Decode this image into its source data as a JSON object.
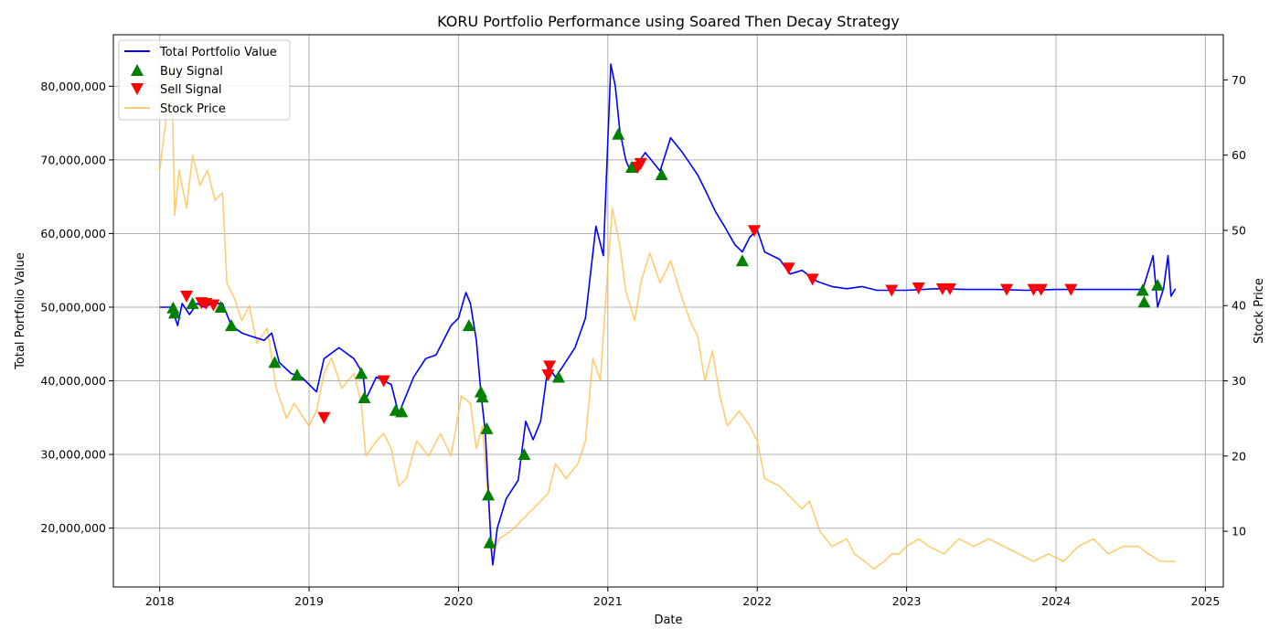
{
  "chart_data": {
    "type": "line",
    "title": "KORU Portfolio Performance using Soared Then Decay Strategy",
    "xlabel": "Date",
    "ylabel_left": "Total Portfolio Value",
    "ylabel_right": "Stock Price",
    "x_ticks": [
      "2018",
      "2019",
      "2020",
      "2021",
      "2022",
      "2023",
      "2024",
      "2025"
    ],
    "x_range": [
      2017.69,
      2025.12
    ],
    "left_ticks": [
      "20,000,000",
      "30,000,000",
      "40,000,000",
      "50,000,000",
      "60,000,000",
      "70,000,000",
      "80,000,000"
    ],
    "left_range": [
      12000000,
      87000000
    ],
    "right_ticks": [
      "10",
      "20",
      "30",
      "40",
      "50",
      "60",
      "70"
    ],
    "right_range": [
      2.6,
      76
    ],
    "grid": true,
    "legend_placement": "top-left",
    "legend": [
      "Total Portfolio Value",
      "Buy Signal",
      "Sell Signal",
      "Stock Price"
    ],
    "colors": {
      "portfolio": "#0000ff",
      "buy": "#008000",
      "sell": "#ff0000",
      "stock": "#ffc04c",
      "grid": "#b0b0b0"
    },
    "series": [
      {
        "name": "Total Portfolio Value",
        "axis": "left",
        "points": [
          [
            2018.0,
            50000000
          ],
          [
            2018.08,
            50000000
          ],
          [
            2018.12,
            47500000
          ],
          [
            2018.15,
            50500000
          ],
          [
            2018.2,
            49000000
          ],
          [
            2018.25,
            50500000
          ],
          [
            2018.3,
            50000000
          ],
          [
            2018.35,
            50500000
          ],
          [
            2018.42,
            50500000
          ],
          [
            2018.48,
            47500000
          ],
          [
            2018.55,
            46500000
          ],
          [
            2018.62,
            46000000
          ],
          [
            2018.7,
            45500000
          ],
          [
            2018.75,
            46500000
          ],
          [
            2018.8,
            42500000
          ],
          [
            2018.88,
            41000000
          ],
          [
            2018.95,
            40500000
          ],
          [
            2019.0,
            39500000
          ],
          [
            2019.05,
            38500000
          ],
          [
            2019.1,
            43000000
          ],
          [
            2019.2,
            44500000
          ],
          [
            2019.3,
            43000000
          ],
          [
            2019.36,
            41000000
          ],
          [
            2019.38,
            37500000
          ],
          [
            2019.45,
            40500000
          ],
          [
            2019.55,
            39500000
          ],
          [
            2019.6,
            35500000
          ],
          [
            2019.62,
            36500000
          ],
          [
            2019.7,
            40500000
          ],
          [
            2019.78,
            43000000
          ],
          [
            2019.85,
            43500000
          ],
          [
            2019.95,
            47500000
          ],
          [
            2020.0,
            48500000
          ],
          [
            2020.05,
            52000000
          ],
          [
            2020.08,
            50500000
          ],
          [
            2020.12,
            45500000
          ],
          [
            2020.15,
            38500000
          ],
          [
            2020.18,
            33000000
          ],
          [
            2020.2,
            25000000
          ],
          [
            2020.22,
            17000000
          ],
          [
            2020.23,
            15000000
          ],
          [
            2020.26,
            20000000
          ],
          [
            2020.32,
            24000000
          ],
          [
            2020.4,
            26500000
          ],
          [
            2020.45,
            34500000
          ],
          [
            2020.5,
            32000000
          ],
          [
            2020.55,
            34500000
          ],
          [
            2020.6,
            42000000
          ],
          [
            2020.65,
            40500000
          ],
          [
            2020.7,
            42000000
          ],
          [
            2020.78,
            44500000
          ],
          [
            2020.85,
            48500000
          ],
          [
            2020.92,
            61000000
          ],
          [
            2020.97,
            57000000
          ],
          [
            2021.02,
            83000000
          ],
          [
            2021.05,
            80000000
          ],
          [
            2021.08,
            74000000
          ],
          [
            2021.12,
            70000000
          ],
          [
            2021.15,
            68500000
          ],
          [
            2021.2,
            69500000
          ],
          [
            2021.25,
            71000000
          ],
          [
            2021.35,
            68500000
          ],
          [
            2021.42,
            73000000
          ],
          [
            2021.5,
            71000000
          ],
          [
            2021.6,
            68000000
          ],
          [
            2021.65,
            66000000
          ],
          [
            2021.72,
            63000000
          ],
          [
            2021.78,
            61000000
          ],
          [
            2021.85,
            58500000
          ],
          [
            2021.9,
            57500000
          ],
          [
            2021.95,
            59500000
          ],
          [
            2022.0,
            60500000
          ],
          [
            2022.05,
            57500000
          ],
          [
            2022.15,
            56500000
          ],
          [
            2022.22,
            54500000
          ],
          [
            2022.3,
            55000000
          ],
          [
            2022.4,
            53500000
          ],
          [
            2022.5,
            52800000
          ],
          [
            2022.6,
            52500000
          ],
          [
            2022.7,
            52800000
          ],
          [
            2022.8,
            52300000
          ],
          [
            2022.9,
            52300000
          ],
          [
            2023.0,
            52300000
          ],
          [
            2023.2,
            52500000
          ],
          [
            2023.4,
            52400000
          ],
          [
            2023.6,
            52400000
          ],
          [
            2023.8,
            52300000
          ],
          [
            2024.0,
            52400000
          ],
          [
            2024.2,
            52400000
          ],
          [
            2024.4,
            52400000
          ],
          [
            2024.58,
            52400000
          ],
          [
            2024.62,
            55000000
          ],
          [
            2024.65,
            57000000
          ],
          [
            2024.68,
            50000000
          ],
          [
            2024.72,
            52500000
          ],
          [
            2024.75,
            57000000
          ],
          [
            2024.77,
            51500000
          ],
          [
            2024.8,
            52500000
          ]
        ]
      },
      {
        "name": "Stock Price",
        "axis": "right",
        "points": [
          [
            2018.0,
            58
          ],
          [
            2018.05,
            66
          ],
          [
            2018.08,
            73
          ],
          [
            2018.1,
            52
          ],
          [
            2018.13,
            58
          ],
          [
            2018.18,
            53
          ],
          [
            2018.22,
            60
          ],
          [
            2018.27,
            56
          ],
          [
            2018.32,
            58
          ],
          [
            2018.37,
            54
          ],
          [
            2018.42,
            55
          ],
          [
            2018.45,
            43
          ],
          [
            2018.5,
            41
          ],
          [
            2018.55,
            38
          ],
          [
            2018.6,
            40
          ],
          [
            2018.65,
            35
          ],
          [
            2018.72,
            37
          ],
          [
            2018.78,
            29
          ],
          [
            2018.85,
            25
          ],
          [
            2018.9,
            27
          ],
          [
            2019.0,
            24
          ],
          [
            2019.05,
            26
          ],
          [
            2019.1,
            31
          ],
          [
            2019.15,
            33
          ],
          [
            2019.22,
            29
          ],
          [
            2019.3,
            31
          ],
          [
            2019.35,
            27
          ],
          [
            2019.38,
            20
          ],
          [
            2019.45,
            22
          ],
          [
            2019.5,
            23
          ],
          [
            2019.55,
            21
          ],
          [
            2019.6,
            16
          ],
          [
            2019.65,
            17
          ],
          [
            2019.72,
            22
          ],
          [
            2019.8,
            20
          ],
          [
            2019.88,
            23
          ],
          [
            2019.95,
            20
          ],
          [
            2020.02,
            28
          ],
          [
            2020.08,
            27
          ],
          [
            2020.12,
            21
          ],
          [
            2020.16,
            24
          ],
          [
            2020.2,
            14
          ],
          [
            2020.23,
            7
          ],
          [
            2020.27,
            9
          ],
          [
            2020.35,
            10
          ],
          [
            2020.45,
            12
          ],
          [
            2020.55,
            14
          ],
          [
            2020.6,
            15
          ],
          [
            2020.65,
            19
          ],
          [
            2020.72,
            17
          ],
          [
            2020.8,
            19
          ],
          [
            2020.85,
            22
          ],
          [
            2020.9,
            33
          ],
          [
            2020.95,
            30
          ],
          [
            2021.0,
            45
          ],
          [
            2021.03,
            53
          ],
          [
            2021.08,
            48
          ],
          [
            2021.12,
            42
          ],
          [
            2021.18,
            38
          ],
          [
            2021.22,
            43
          ],
          [
            2021.28,
            47
          ],
          [
            2021.35,
            43
          ],
          [
            2021.42,
            46
          ],
          [
            2021.48,
            42
          ],
          [
            2021.55,
            38
          ],
          [
            2021.6,
            36
          ],
          [
            2021.65,
            30
          ],
          [
            2021.7,
            34
          ],
          [
            2021.75,
            28
          ],
          [
            2021.8,
            24
          ],
          [
            2021.88,
            26
          ],
          [
            2021.95,
            24
          ],
          [
            2022.0,
            22
          ],
          [
            2022.05,
            17
          ],
          [
            2022.15,
            16
          ],
          [
            2022.2,
            15
          ],
          [
            2022.3,
            13
          ],
          [
            2022.35,
            14
          ],
          [
            2022.42,
            10
          ],
          [
            2022.5,
            8
          ],
          [
            2022.6,
            9
          ],
          [
            2022.65,
            7
          ],
          [
            2022.72,
            6
          ],
          [
            2022.78,
            5
          ],
          [
            2022.85,
            6
          ],
          [
            2022.9,
            7
          ],
          [
            2022.95,
            7
          ],
          [
            2023.0,
            8
          ],
          [
            2023.08,
            9
          ],
          [
            2023.15,
            8
          ],
          [
            2023.25,
            7
          ],
          [
            2023.35,
            9
          ],
          [
            2023.45,
            8
          ],
          [
            2023.55,
            9
          ],
          [
            2023.65,
            8
          ],
          [
            2023.75,
            7
          ],
          [
            2023.85,
            6
          ],
          [
            2023.95,
            7
          ],
          [
            2024.05,
            6
          ],
          [
            2024.15,
            8
          ],
          [
            2024.25,
            9
          ],
          [
            2024.35,
            7
          ],
          [
            2024.45,
            8
          ],
          [
            2024.55,
            8
          ],
          [
            2024.62,
            7
          ],
          [
            2024.7,
            6
          ],
          [
            2024.8,
            6
          ]
        ]
      },
      {
        "name": "Buy Signal",
        "axis": "left",
        "points": [
          [
            2018.09,
            49900000
          ],
          [
            2018.1,
            49200000
          ],
          [
            2018.22,
            50500000
          ],
          [
            2018.41,
            50000000
          ],
          [
            2018.48,
            47500000
          ],
          [
            2018.77,
            42500000
          ],
          [
            2018.92,
            40800000
          ],
          [
            2019.35,
            41000000
          ],
          [
            2019.37,
            37700000
          ],
          [
            2019.58,
            36000000
          ],
          [
            2019.62,
            35800000
          ],
          [
            2020.07,
            47500000
          ],
          [
            2020.15,
            38500000
          ],
          [
            2020.16,
            37800000
          ],
          [
            2020.19,
            33500000
          ],
          [
            2020.2,
            24500000
          ],
          [
            2020.21,
            18000000
          ],
          [
            2020.44,
            30000000
          ],
          [
            2020.67,
            40500000
          ],
          [
            2021.07,
            73500000
          ],
          [
            2021.16,
            69000000
          ],
          [
            2021.36,
            68000000
          ],
          [
            2021.9,
            56300000
          ],
          [
            2024.58,
            52300000
          ],
          [
            2024.59,
            50700000
          ],
          [
            2024.68,
            53000000
          ]
        ]
      },
      {
        "name": "Sell Signal",
        "axis": "left",
        "points": [
          [
            2018.18,
            51500000
          ],
          [
            2018.28,
            50600000
          ],
          [
            2018.31,
            50500000
          ],
          [
            2018.36,
            50300000
          ],
          [
            2019.1,
            35000000
          ],
          [
            2019.5,
            40000000
          ],
          [
            2020.61,
            42000000
          ],
          [
            2020.6,
            40800000
          ],
          [
            2021.2,
            69000000
          ],
          [
            2021.22,
            69500000
          ],
          [
            2021.98,
            60400000
          ],
          [
            2022.21,
            55300000
          ],
          [
            2022.37,
            53800000
          ],
          [
            2022.9,
            52300000
          ],
          [
            2023.08,
            52600000
          ],
          [
            2023.24,
            52500000
          ],
          [
            2023.29,
            52500000
          ],
          [
            2023.67,
            52400000
          ],
          [
            2023.85,
            52400000
          ],
          [
            2023.9,
            52400000
          ],
          [
            2024.1,
            52400000
          ]
        ]
      }
    ]
  }
}
